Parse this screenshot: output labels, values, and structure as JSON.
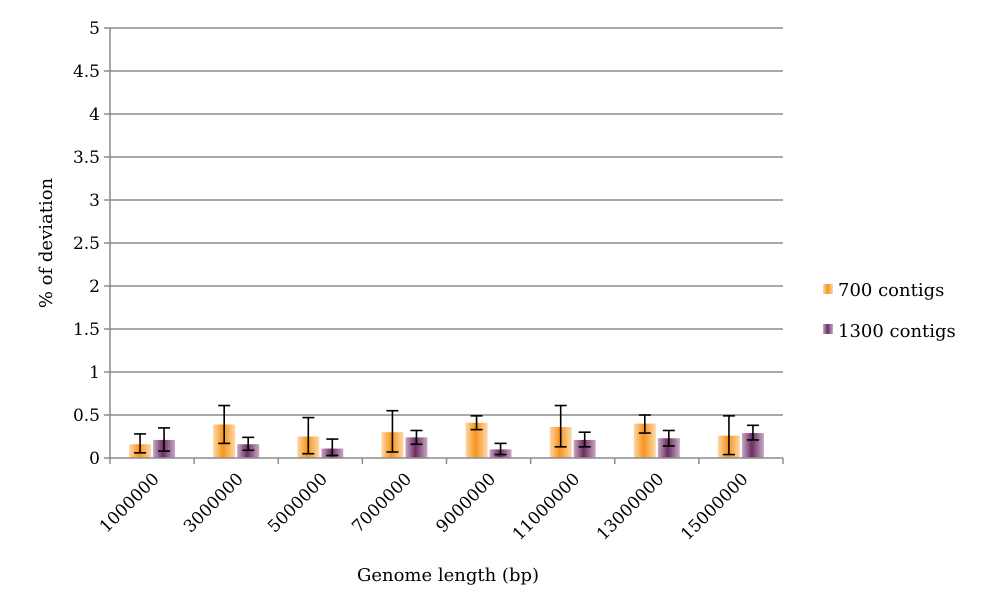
{
  "chart_data": {
    "type": "bar",
    "title": "",
    "xlabel": "Genome length (bp)",
    "ylabel": "% of deviation",
    "ylim": [
      0,
      5
    ],
    "yticks": [
      "0",
      "0.5",
      "1",
      "1.5",
      "2",
      "2.5",
      "3",
      "3.5",
      "4",
      "4.5",
      "5"
    ],
    "categories": [
      "1000000",
      "3000000",
      "5000000",
      "7000000",
      "9000000",
      "11000000",
      "13000000",
      "15000000"
    ],
    "grid": "horizontal",
    "legend_position": "right",
    "series": [
      {
        "name": "700 contigs",
        "color": "#f7941d",
        "values": [
          0.16,
          0.39,
          0.25,
          0.3,
          0.41,
          0.36,
          0.4,
          0.26
        ],
        "error_low": [
          0.06,
          0.17,
          0.05,
          0.07,
          0.33,
          0.13,
          0.29,
          0.04
        ],
        "error_high": [
          0.28,
          0.61,
          0.47,
          0.55,
          0.49,
          0.61,
          0.5,
          0.49
        ]
      },
      {
        "name": "1300 contigs",
        "color": "#6b2d63",
        "values": [
          0.21,
          0.16,
          0.11,
          0.24,
          0.1,
          0.21,
          0.23,
          0.29
        ],
        "error_low": [
          0.08,
          0.09,
          0.03,
          0.16,
          0.04,
          0.13,
          0.14,
          0.21
        ],
        "error_high": [
          0.35,
          0.24,
          0.22,
          0.32,
          0.17,
          0.3,
          0.32,
          0.38
        ]
      }
    ]
  }
}
